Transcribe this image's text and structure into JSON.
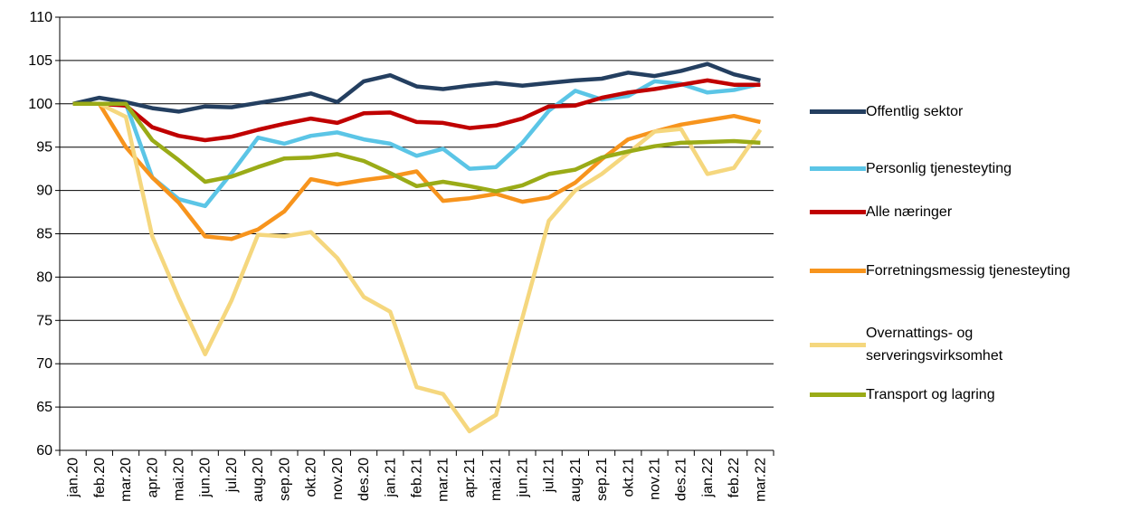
{
  "chart_data": {
    "type": "line",
    "categories": [
      "jan.20",
      "feb.20",
      "mar.20",
      "apr.20",
      "mai.20",
      "jun.20",
      "jul.20",
      "aug.20",
      "sep.20",
      "okt.20",
      "nov.20",
      "des.20",
      "jan.21",
      "feb.21",
      "mar.21",
      "apr.21",
      "mai.21",
      "jun.21",
      "jul.21",
      "aug.21",
      "sep.21",
      "okt.21",
      "nov.21",
      "des.21",
      "jan.22",
      "feb.22",
      "mar.22"
    ],
    "series": [
      {
        "name": "Offentlig sektor",
        "color": "#243f60",
        "values": [
          100,
          100.7,
          100.2,
          99.5,
          99.1,
          99.7,
          99.6,
          100.1,
          100.6,
          101.2,
          100.2,
          102.6,
          103.3,
          102.0,
          101.7,
          102.1,
          102.4,
          102.1,
          102.4,
          102.7,
          102.9,
          103.6,
          103.2,
          103.8,
          104.6,
          103.4,
          102.7
        ]
      },
      {
        "name": "Personlig tjenesteyting",
        "color": "#5bc5e6",
        "values": [
          100,
          100,
          100,
          91.5,
          89.0,
          88.2,
          92.0,
          96.1,
          95.4,
          96.3,
          96.7,
          95.9,
          95.4,
          94.0,
          94.8,
          92.5,
          92.7,
          95.5,
          99.2,
          101.5,
          100.5,
          100.9,
          102.6,
          102.3,
          101.3,
          101.6,
          102.3
        ]
      },
      {
        "name": "Alle næringer",
        "color": "#c00000",
        "values": [
          100,
          100,
          99.8,
          97.3,
          96.3,
          95.8,
          96.2,
          97.0,
          97.7,
          98.3,
          97.8,
          98.9,
          99.0,
          97.9,
          97.8,
          97.2,
          97.5,
          98.3,
          99.7,
          99.8,
          100.7,
          101.3,
          101.7,
          102.2,
          102.7,
          102.2,
          102.2
        ]
      },
      {
        "name": "Forretningsmessig tjenesteyting",
        "color": "#f7941d",
        "values": [
          100,
          100,
          95.0,
          91.5,
          88.6,
          84.7,
          84.4,
          85.5,
          87.6,
          91.3,
          90.7,
          91.2,
          91.6,
          92.2,
          88.8,
          89.1,
          89.6,
          88.7,
          89.2,
          90.9,
          93.6,
          95.9,
          96.8,
          97.6,
          98.1,
          98.6,
          97.9
        ]
      },
      {
        "name": "Overnattings- og\nserveringsvirksomhet",
        "color": "#f5d77e",
        "values": [
          100,
          100,
          98.5,
          84.7,
          77.6,
          71.1,
          77.3,
          84.9,
          84.7,
          85.2,
          82.2,
          77.7,
          76.0,
          67.3,
          66.5,
          62.2,
          64.1,
          75.3,
          86.5,
          90.0,
          91.9,
          94.3,
          96.8,
          97.1,
          91.9,
          92.6,
          97.0
        ]
      },
      {
        "name": "Transport og lagring",
        "color": "#9aab17",
        "values": [
          100,
          100,
          100,
          95.8,
          93.5,
          91.0,
          91.6,
          92.7,
          93.7,
          93.8,
          94.2,
          93.4,
          92.0,
          90.5,
          91.0,
          90.5,
          89.9,
          90.6,
          91.9,
          92.4,
          93.8,
          94.5,
          95.1,
          95.5,
          95.6,
          95.7,
          95.5
        ]
      }
    ],
    "ylim": [
      60,
      110
    ],
    "yticks": [
      60,
      65,
      70,
      75,
      80,
      85,
      90,
      95,
      100,
      105,
      110
    ],
    "grid": true
  }
}
